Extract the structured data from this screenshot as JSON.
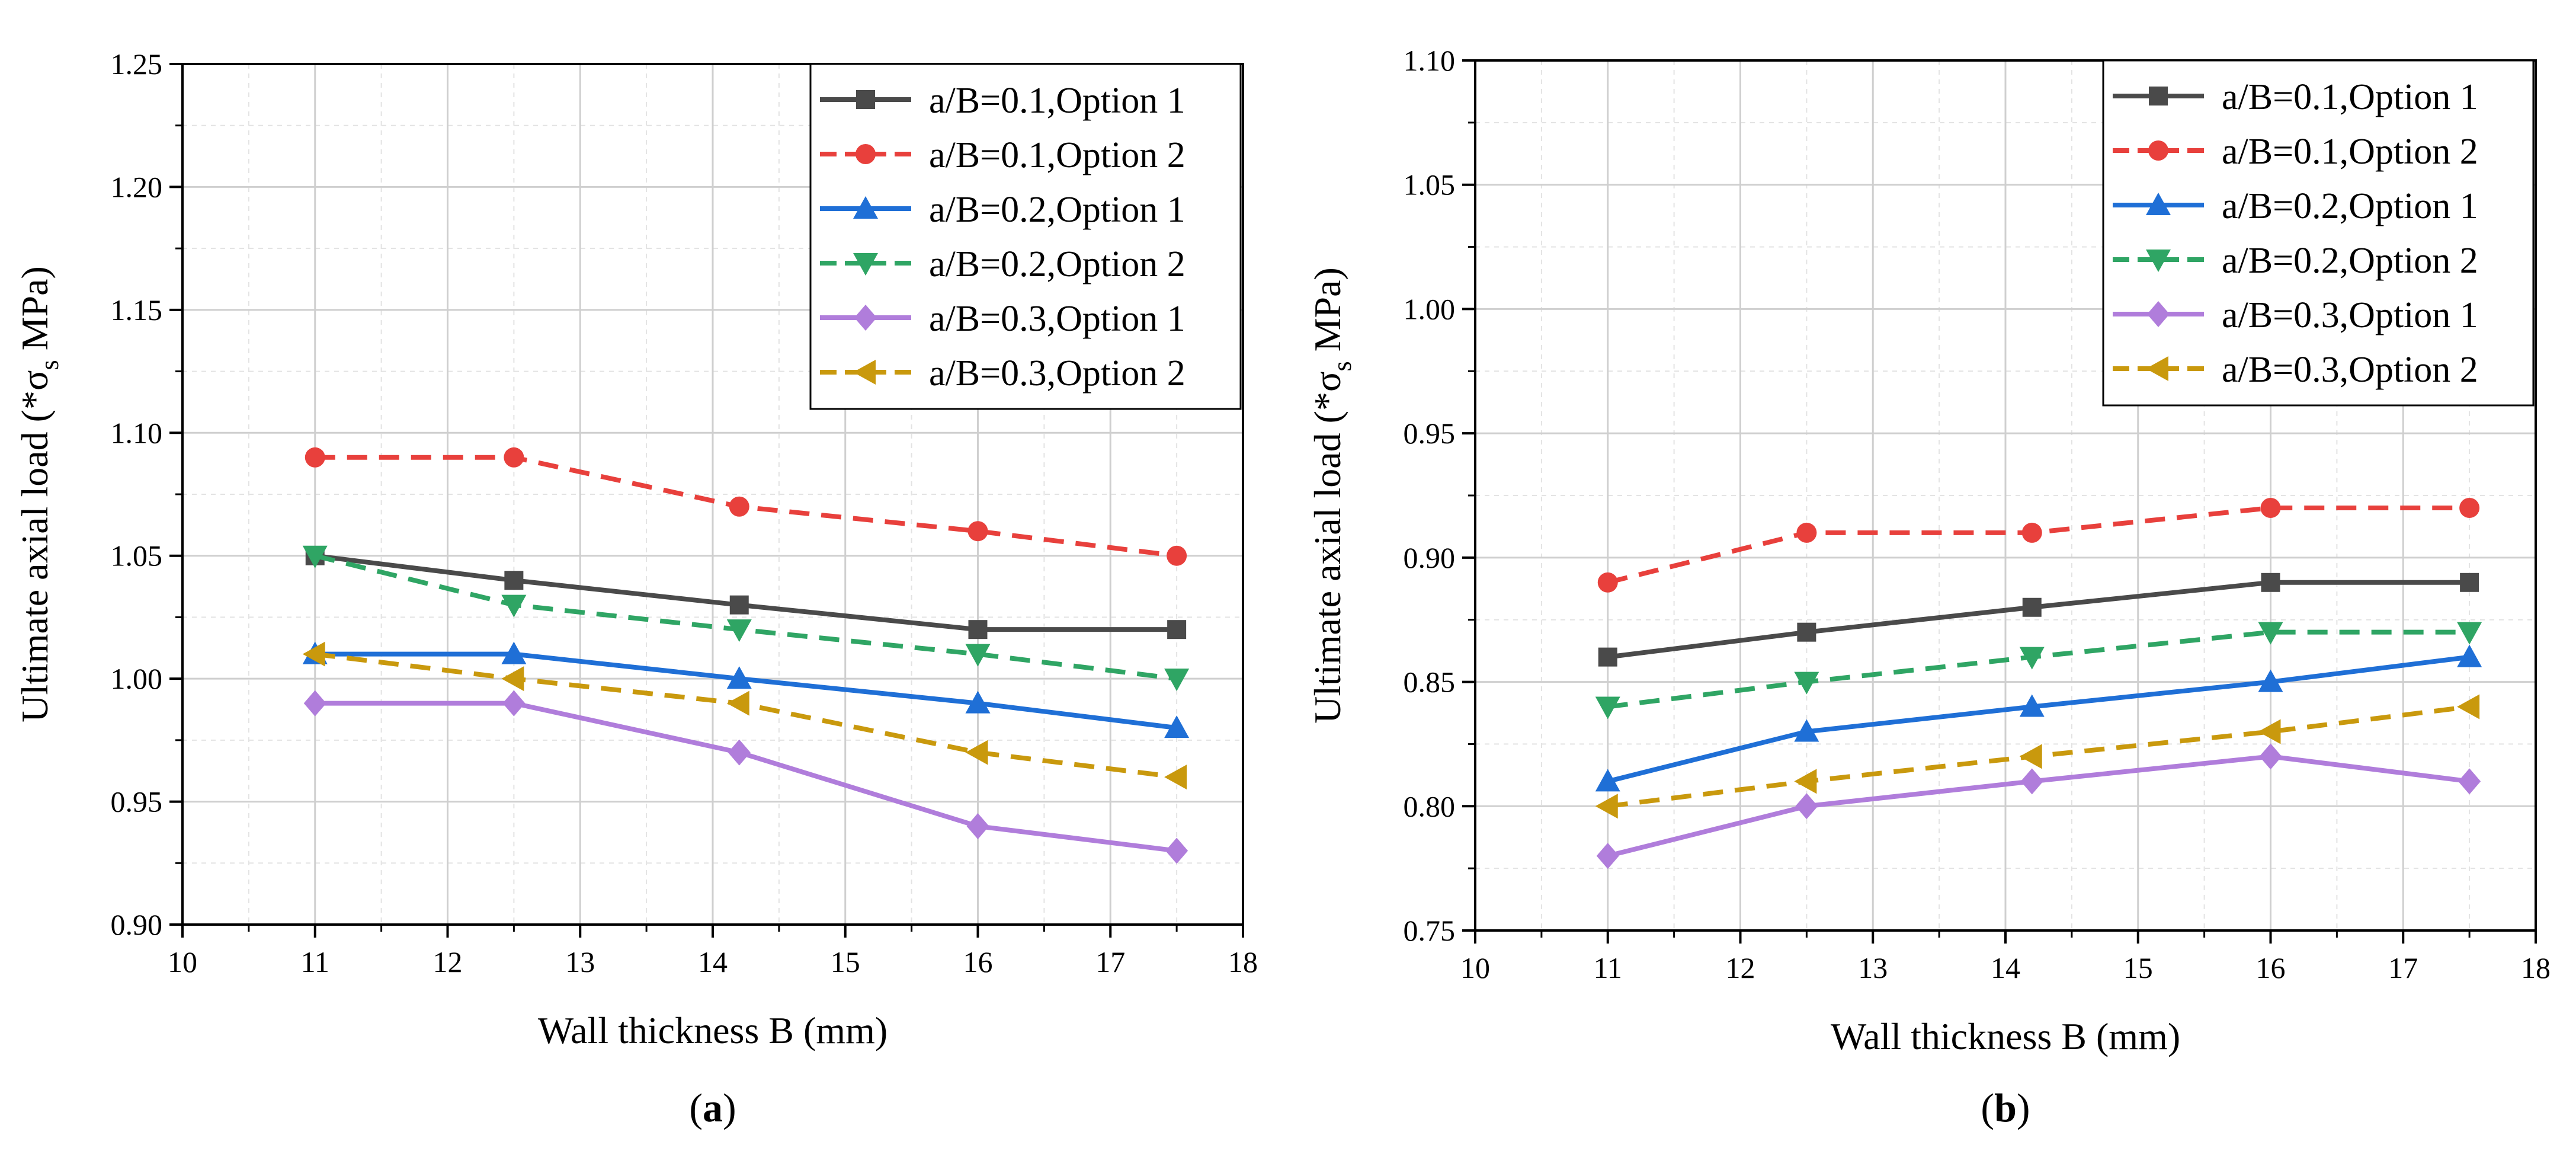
{
  "chart_data": [
    {
      "id": "a",
      "type": "line",
      "panel_label": "a",
      "xlabel": "Wall thickness B (mm)",
      "ylabel_main": "Ultimate axial load (*σ",
      "ylabel_sub": "s",
      "ylabel_tail": " MPa)",
      "xlim": [
        10,
        18
      ],
      "ylim": [
        0.9,
        1.25
      ],
      "x_ticks": [
        10,
        11,
        12,
        13,
        14,
        15,
        16,
        17,
        18
      ],
      "y_ticks": [
        0.9,
        0.95,
        1.0,
        1.05,
        1.1,
        1.15,
        1.2,
        1.25
      ],
      "y_tick_labels": [
        "0.90",
        "0.95",
        "1.00",
        "1.05",
        "1.10",
        "1.15",
        "1.20",
        "1.25"
      ],
      "x_tick_labels": [
        "10",
        "11",
        "12",
        "13",
        "14",
        "15",
        "16",
        "17",
        "18"
      ],
      "grid": true,
      "legend_position": "top-right",
      "x": [
        11,
        12.5,
        14.2,
        16,
        17.5
      ],
      "series": [
        {
          "name": "a/B=0.1,Option 1",
          "color": "#4a4a4a",
          "dash": "solid",
          "marker": "square",
          "values": [
            1.05,
            1.04,
            1.03,
            1.02,
            1.02
          ]
        },
        {
          "name": "a/B=0.1,Option 2",
          "color": "#e8403c",
          "dash": "dashed",
          "marker": "circle",
          "values": [
            1.09,
            1.09,
            1.07,
            1.06,
            1.05
          ]
        },
        {
          "name": "a/B=0.2,Option 1",
          "color": "#1f6fd6",
          "dash": "solid",
          "marker": "triangle-up",
          "values": [
            1.01,
            1.01,
            1.0,
            0.99,
            0.98
          ]
        },
        {
          "name": "a/B=0.2,Option 2",
          "color": "#2fa564",
          "dash": "dashed",
          "marker": "triangle-down",
          "values": [
            1.05,
            1.03,
            1.02,
            1.01,
            1.0
          ]
        },
        {
          "name": "a/B=0.3,Option 1",
          "color": "#b07ddb",
          "dash": "solid",
          "marker": "diamond",
          "values": [
            0.99,
            0.99,
            0.97,
            0.94,
            0.93
          ]
        },
        {
          "name": "a/B=0.3,Option 2",
          "color": "#c9990d",
          "dash": "dashed",
          "marker": "triangle-left",
          "values": [
            1.01,
            1.0,
            0.99,
            0.97,
            0.96
          ]
        }
      ]
    },
    {
      "id": "b",
      "type": "line",
      "panel_label": "b",
      "xlabel": "Wall thickness B (mm)",
      "ylabel_main": "Ultimate axial load (*σ",
      "ylabel_sub": "s",
      "ylabel_tail": " MPa)",
      "xlim": [
        10,
        18
      ],
      "ylim": [
        0.75,
        1.1
      ],
      "x_ticks": [
        10,
        11,
        12,
        13,
        14,
        15,
        16,
        17,
        18
      ],
      "y_ticks": [
        0.75,
        0.8,
        0.85,
        0.9,
        0.95,
        1.0,
        1.05,
        1.1
      ],
      "y_tick_labels": [
        "0.75",
        "0.80",
        "0.85",
        "0.90",
        "0.95",
        "1.00",
        "1.05",
        "1.10"
      ],
      "x_tick_labels": [
        "10",
        "11",
        "12",
        "13",
        "14",
        "15",
        "16",
        "17",
        "18"
      ],
      "grid": true,
      "legend_position": "top-right",
      "x": [
        11,
        12.5,
        14.2,
        16,
        17.5
      ],
      "series": [
        {
          "name": "a/B=0.1,Option 1",
          "color": "#4a4a4a",
          "dash": "solid",
          "marker": "square",
          "values": [
            0.86,
            0.87,
            0.88,
            0.89,
            0.89
          ]
        },
        {
          "name": "a/B=0.1,Option 2",
          "color": "#e8403c",
          "dash": "dashed",
          "marker": "circle",
          "values": [
            0.89,
            0.91,
            0.91,
            0.92,
            0.92
          ]
        },
        {
          "name": "a/B=0.2,Option 1",
          "color": "#1f6fd6",
          "dash": "solid",
          "marker": "triangle-up",
          "values": [
            0.81,
            0.83,
            0.84,
            0.85,
            0.86
          ]
        },
        {
          "name": "a/B=0.2,Option 2",
          "color": "#2fa564",
          "dash": "dashed",
          "marker": "triangle-down",
          "values": [
            0.84,
            0.85,
            0.86,
            0.87,
            0.87
          ]
        },
        {
          "name": "a/B=0.3,Option 1",
          "color": "#b07ddb",
          "dash": "solid",
          "marker": "diamond",
          "values": [
            0.78,
            0.8,
            0.81,
            0.82,
            0.81
          ]
        },
        {
          "name": "a/B=0.3,Option 2",
          "color": "#c9990d",
          "dash": "dashed",
          "marker": "triangle-left",
          "values": [
            0.8,
            0.81,
            0.82,
            0.83,
            0.84
          ]
        }
      ]
    }
  ]
}
